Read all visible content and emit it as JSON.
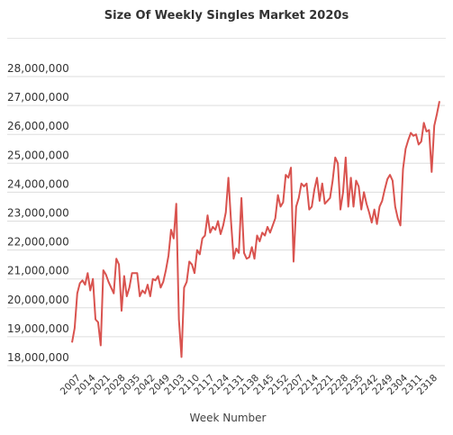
{
  "chart_data": {
    "type": "line",
    "title": "Size Of Weekly Singles Market 2020s",
    "xlabel": "Week Number",
    "ylabel": "",
    "ylim": [
      18000000,
      28000000
    ],
    "grid": true,
    "y_ticks": [
      "28,000,000",
      "27,000,000",
      "26,000,000",
      "25,000,000",
      "24,000,000",
      "23,000,000",
      "22,000,000",
      "21,000,000",
      "20,000,000",
      "19,000,000",
      "18,000,000"
    ],
    "x_tick_labels": [
      "2007",
      "2014",
      "2021",
      "2028",
      "2035",
      "2042",
      "2049",
      "2103",
      "2110",
      "2117",
      "2124",
      "2131",
      "2138",
      "2145",
      "2152",
      "2207",
      "2214",
      "2221",
      "2228",
      "2235",
      "2242",
      "2249",
      "2304",
      "2311",
      "2318"
    ],
    "color": "#d9534f",
    "series": [
      {
        "values": [
          18800000,
          19300000,
          20500000,
          20850000,
          20950000,
          20800000,
          21200000,
          20600000,
          21000000,
          19600000,
          19500000,
          18700000,
          21300000,
          21150000,
          20900000,
          20700000,
          20500000,
          21700000,
          21500000,
          19900000,
          21100000,
          20400000,
          20700000,
          21200000,
          21200000,
          21200000,
          20400000,
          20600000,
          20500000,
          20800000,
          20400000,
          21000000,
          20950000,
          21100000,
          20700000,
          20900000,
          21300000,
          21800000,
          22700000,
          22400000,
          23600000,
          19600000,
          18300000,
          20700000,
          20900000,
          21600000,
          21500000,
          21200000,
          22000000,
          21850000,
          22400000,
          22500000,
          23200000,
          22600000,
          22800000,
          22700000,
          23000000,
          22550000,
          22850000,
          23300000,
          24500000,
          23000000,
          21700000,
          22050000,
          21900000,
          23800000,
          21900000,
          21700000,
          21750000,
          22100000,
          21700000,
          22500000,
          22300000,
          22600000,
          22500000,
          22800000,
          22600000,
          22850000,
          23100000,
          23900000,
          23500000,
          23650000,
          24600000,
          24500000,
          24850000,
          21600000,
          23500000,
          23800000,
          24300000,
          24200000,
          24300000,
          23400000,
          23500000,
          24100000,
          24500000,
          23700000,
          24300000,
          23600000,
          23700000,
          23800000,
          24400000,
          25200000,
          25000000,
          23400000,
          24000000,
          25200000,
          23500000,
          24500000,
          23500000,
          24400000,
          24200000,
          23400000,
          24000000,
          23600000,
          23300000,
          22950000,
          23400000,
          22900000,
          23500000,
          23700000,
          24100000,
          24450000,
          24600000,
          24400000,
          23500000,
          23100000,
          22850000,
          24800000,
          25500000,
          25800000,
          26050000,
          25950000,
          26000000,
          25650000,
          25750000,
          26400000,
          26100000,
          26150000,
          24700000,
          26300000,
          26700000,
          27150000
        ]
      }
    ]
  }
}
